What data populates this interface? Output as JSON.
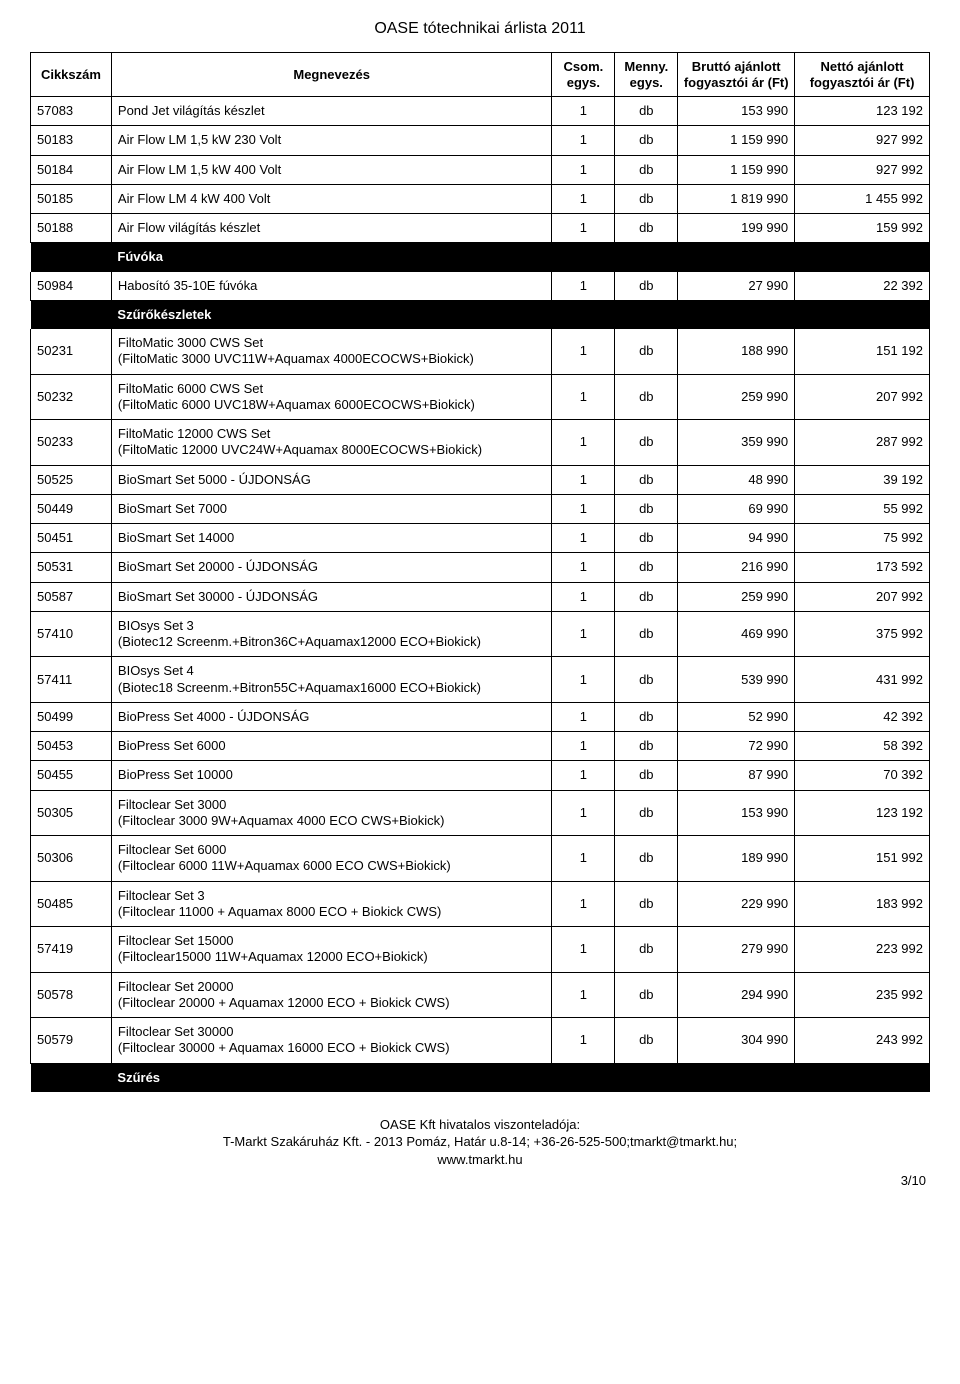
{
  "title": "OASE tótechnikai árlista 2011",
  "columns": {
    "code": "Cikkszám",
    "name": "Megnevezés",
    "unit1": "Csom. egys.",
    "unit2": "Menny. egys.",
    "price_gross": "Bruttó ajánlott fogyasztói ár (Ft)",
    "price_net": "Nettó ajánlott fogyasztói ár (Ft)"
  },
  "colors": {
    "section_bg": "#000000",
    "section_fg": "#ffffff",
    "border": "#000000",
    "page_bg": "#ffffff",
    "text": "#000000"
  },
  "rows": [
    {
      "type": "data",
      "code": "57083",
      "name": "Pond Jet világítás készlet",
      "u1": "1",
      "u2": "db",
      "p1": "153 990",
      "p2": "123 192"
    },
    {
      "type": "data",
      "code": "50183",
      "name": "Air Flow LM 1,5 kW 230 Volt",
      "u1": "1",
      "u2": "db",
      "p1": "1 159 990",
      "p2": "927 992"
    },
    {
      "type": "data",
      "code": "50184",
      "name": "Air Flow LM 1,5 kW 400 Volt",
      "u1": "1",
      "u2": "db",
      "p1": "1 159 990",
      "p2": "927 992"
    },
    {
      "type": "data",
      "code": "50185",
      "name": "Air Flow LM 4 kW 400 Volt",
      "u1": "1",
      "u2": "db",
      "p1": "1 819 990",
      "p2": "1 455 992"
    },
    {
      "type": "data",
      "code": "50188",
      "name": "Air Flow világítás készlet",
      "u1": "1",
      "u2": "db",
      "p1": "199 990",
      "p2": "159 992"
    },
    {
      "type": "section",
      "label": "Fúvóka"
    },
    {
      "type": "data",
      "code": "50984",
      "name": "Habosító 35-10E fúvóka",
      "u1": "1",
      "u2": "db",
      "p1": "27 990",
      "p2": "22 392"
    },
    {
      "type": "section",
      "label": "Szűrőkészletek"
    },
    {
      "type": "data",
      "code": "50231",
      "name": "FiltoMatic 3000 CWS Set\n(FiltoMatic 3000 UVC11W+Aquamax 4000ECOCWS+Biokick)",
      "u1": "1",
      "u2": "db",
      "p1": "188 990",
      "p2": "151 192"
    },
    {
      "type": "data",
      "code": "50232",
      "name": "FiltoMatic 6000 CWS Set\n(FiltoMatic 6000 UVC18W+Aquamax 6000ECOCWS+Biokick)",
      "u1": "1",
      "u2": "db",
      "p1": "259 990",
      "p2": "207 992"
    },
    {
      "type": "data",
      "code": "50233",
      "name": "FiltoMatic 12000 CWS Set\n(FiltoMatic 12000 UVC24W+Aquamax 8000ECOCWS+Biokick)",
      "u1": "1",
      "u2": "db",
      "p1": "359 990",
      "p2": "287 992"
    },
    {
      "type": "data",
      "code": "50525",
      "name": "BioSmart Set 5000  - ÚJDONSÁG",
      "u1": "1",
      "u2": "db",
      "p1": "48 990",
      "p2": "39 192"
    },
    {
      "type": "data",
      "code": "50449",
      "name": "BioSmart Set 7000",
      "u1": "1",
      "u2": "db",
      "p1": "69 990",
      "p2": "55 992"
    },
    {
      "type": "data",
      "code": "50451",
      "name": "BioSmart Set 14000",
      "u1": "1",
      "u2": "db",
      "p1": "94 990",
      "p2": "75 992"
    },
    {
      "type": "data",
      "code": "50531",
      "name": "BioSmart Set 20000 - ÚJDONSÁG",
      "u1": "1",
      "u2": "db",
      "p1": "216 990",
      "p2": "173 592"
    },
    {
      "type": "data",
      "code": "50587",
      "name": "BioSmart Set 30000 - ÚJDONSÁG",
      "u1": "1",
      "u2": "db",
      "p1": "259 990",
      "p2": "207 992"
    },
    {
      "type": "data",
      "code": "57410",
      "name": "BIOsys Set 3\n(Biotec12 Screenm.+Bitron36C+Aquamax12000 ECO+Biokick)",
      "u1": "1",
      "u2": "db",
      "p1": "469 990",
      "p2": "375 992"
    },
    {
      "type": "data",
      "code": "57411",
      "name": "BIOsys Set 4\n(Biotec18 Screenm.+Bitron55C+Aquamax16000 ECO+Biokick)",
      "u1": "1",
      "u2": "db",
      "p1": "539 990",
      "p2": "431 992"
    },
    {
      "type": "data",
      "code": "50499",
      "name": "BioPress Set 4000 - ÚJDONSÁG",
      "u1": "1",
      "u2": "db",
      "p1": "52 990",
      "p2": "42 392"
    },
    {
      "type": "data",
      "code": "50453",
      "name": "BioPress Set 6000",
      "u1": "1",
      "u2": "db",
      "p1": "72 990",
      "p2": "58 392"
    },
    {
      "type": "data",
      "code": "50455",
      "name": "BioPress Set 10000",
      "u1": "1",
      "u2": "db",
      "p1": "87 990",
      "p2": "70 392"
    },
    {
      "type": "data",
      "code": "50305",
      "name": "Filtoclear Set 3000\n(Filtoclear 3000 9W+Aquamax 4000 ECO CWS+Biokick)",
      "u1": "1",
      "u2": "db",
      "p1": "153 990",
      "p2": "123 192"
    },
    {
      "type": "data",
      "code": "50306",
      "name": "Filtoclear Set 6000\n(Filtoclear 6000 11W+Aquamax 6000 ECO CWS+Biokick)",
      "u1": "1",
      "u2": "db",
      "p1": "189 990",
      "p2": "151 992"
    },
    {
      "type": "data",
      "code": "50485",
      "name": "Filtoclear Set 3\n(Filtoclear 11000 + Aquamax 8000 ECO + Biokick CWS)",
      "u1": "1",
      "u2": "db",
      "p1": "229 990",
      "p2": "183 992"
    },
    {
      "type": "data",
      "code": "57419",
      "name": "Filtoclear Set 15000\n(Filtoclear15000 11W+Aquamax 12000 ECO+Biokick)",
      "u1": "1",
      "u2": "db",
      "p1": "279 990",
      "p2": "223 992"
    },
    {
      "type": "data",
      "code": "50578",
      "name": "Filtoclear Set 20000\n(Filtoclear 20000 + Aquamax 12000 ECO + Biokick CWS)",
      "u1": "1",
      "u2": "db",
      "p1": "294 990",
      "p2": "235 992"
    },
    {
      "type": "data",
      "code": "50579",
      "name": "Filtoclear Set 30000\n(Filtoclear 30000 + Aquamax 16000 ECO + Biokick CWS)",
      "u1": "1",
      "u2": "db",
      "p1": "304 990",
      "p2": "243 992"
    },
    {
      "type": "section",
      "label": "Szűrés"
    }
  ],
  "footer": {
    "line1": "OASE Kft hivatalos viszonteladója:",
    "line2": "T-Markt Szakáruház Kft. - 2013 Pomáz, Határ u.8-14; +36-26-525-500;tmarkt@tmarkt.hu;",
    "line3": "www.tmarkt.hu"
  },
  "page_number": "3/10"
}
